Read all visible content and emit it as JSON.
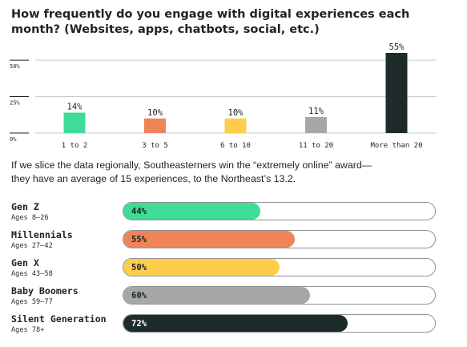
{
  "title": "How frequently do you engage with digital experiences each month? (Websites, apps, chatbots, social, etc.)",
  "caption": "If we slice the data regionally, Southeasterners win the “extremely online” award—they have an average of 15 experiences, to the Northeast’s 13.2.",
  "chart_data": [
    {
      "type": "bar",
      "title": "How frequently do you engage with digital experiences each month? (Websites, apps, chatbots, social, etc.)",
      "categories": [
        "1 to 2",
        "3 to 5",
        "6 to 10",
        "11 to 20",
        "More than 20"
      ],
      "values": [
        14,
        10,
        10,
        11,
        55
      ],
      "data_labels": [
        "14%",
        "10%",
        "10%",
        "11%",
        "55%"
      ],
      "bar_colors": [
        "#3ddc97",
        "#ef8458",
        "#ffcd4b",
        "#a5a8a7",
        "#1e2b2b"
      ],
      "yticks": [
        0,
        25,
        50
      ],
      "ytick_labels": [
        "0%",
        "25%",
        "50%"
      ],
      "ylim": [
        0,
        55
      ],
      "xlabel": "",
      "ylabel": "",
      "grid": true
    },
    {
      "type": "bar",
      "orientation": "horizontal",
      "categories": [
        "Gen Z",
        "Millennials",
        "Gen X",
        "Baby Boomers",
        "Silent Generation"
      ],
      "subtitles": [
        "Ages 8–26",
        "Ages 27–42",
        "Ages 43–58",
        "Ages 59–77",
        "Ages 78+"
      ],
      "values": [
        44,
        55,
        50,
        60,
        72
      ],
      "data_labels": [
        "44%",
        "55%",
        "50%",
        "60%",
        "72%"
      ],
      "bar_colors": [
        "#3ddc97",
        "#ef8458",
        "#ffcd4b",
        "#a5a8a7",
        "#1e2b2b"
      ],
      "label_colors": [
        "#1e2324",
        "#1e2324",
        "#1e2324",
        "#1e2324",
        "#ffffff"
      ],
      "xlim": [
        0,
        100
      ]
    }
  ]
}
